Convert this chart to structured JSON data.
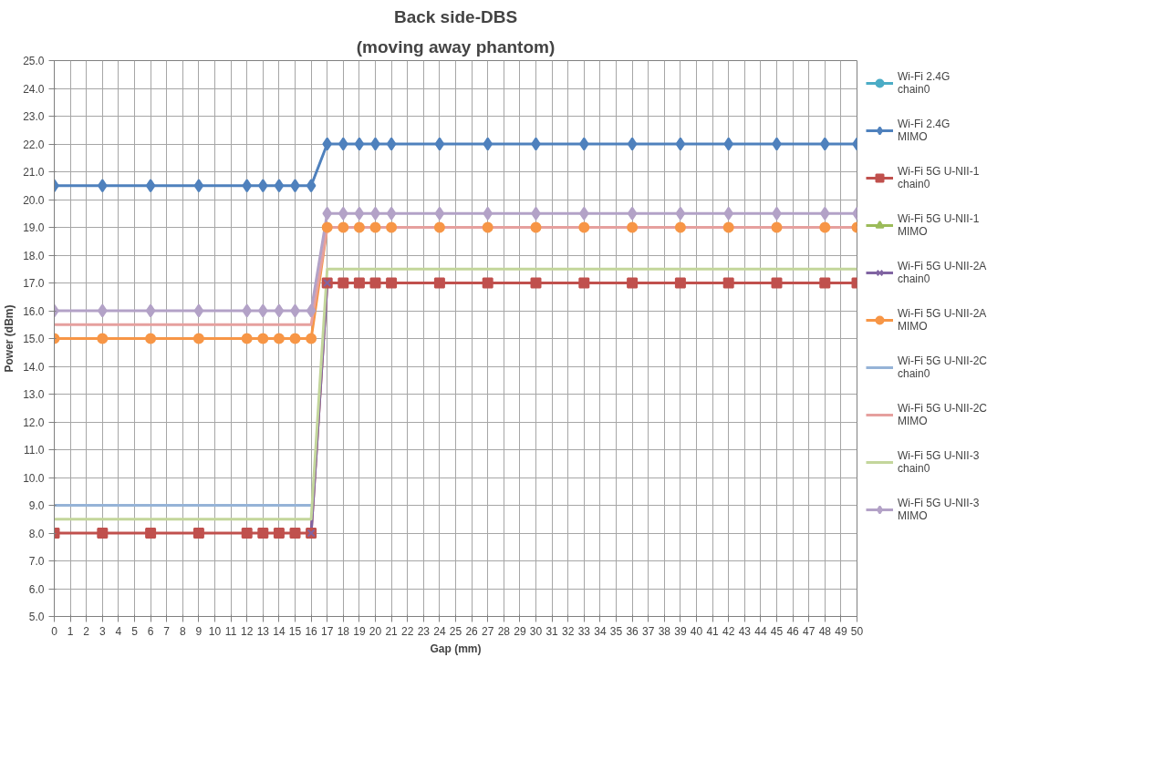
{
  "chart_data": {
    "type": "line",
    "title": "Back side-DBS",
    "subtitle": "(moving away phantom)",
    "xlabel": "Gap (mm)",
    "ylabel": "Power (dBm)",
    "x": [
      0,
      3,
      6,
      9,
      12,
      13,
      14,
      15,
      16,
      17,
      18,
      19,
      20,
      21,
      24,
      27,
      30,
      33,
      36,
      39,
      42,
      45,
      48,
      50
    ],
    "xlim": [
      0,
      50
    ],
    "xticks": [
      0,
      1,
      2,
      3,
      4,
      5,
      6,
      7,
      8,
      9,
      10,
      11,
      12,
      13,
      14,
      15,
      16,
      17,
      18,
      19,
      20,
      21,
      22,
      23,
      24,
      25,
      26,
      27,
      28,
      29,
      30,
      31,
      32,
      33,
      34,
      35,
      36,
      37,
      38,
      39,
      40,
      41,
      42,
      43,
      44,
      45,
      46,
      47,
      48,
      49,
      50
    ],
    "ylim": [
      5,
      25
    ],
    "yticks": [
      {
        "value": 5,
        "label": "5.0"
      },
      {
        "value": 6,
        "label": "6.0"
      },
      {
        "value": 7,
        "label": "7.0"
      },
      {
        "value": 8,
        "label": "8.0"
      },
      {
        "value": 9,
        "label": "9.0"
      },
      {
        "value": 10,
        "label": "10.0"
      },
      {
        "value": 11,
        "label": "11.0"
      },
      {
        "value": 12,
        "label": "12.0"
      },
      {
        "value": 13,
        "label": "13.0"
      },
      {
        "value": 14,
        "label": "14.0"
      },
      {
        "value": 15,
        "label": "15.0"
      },
      {
        "value": 16,
        "label": "16.0"
      },
      {
        "value": 17,
        "label": "17.0"
      },
      {
        "value": 18,
        "label": "18.0"
      },
      {
        "value": 19,
        "label": "19.0"
      },
      {
        "value": 20,
        "label": "20.0"
      },
      {
        "value": 21,
        "label": "21.0"
      },
      {
        "value": 22,
        "label": "22.0"
      },
      {
        "value": 23,
        "label": "23.0"
      },
      {
        "value": 24,
        "label": "24.0"
      },
      {
        "value": 25,
        "label": "25.0"
      }
    ],
    "grid": true,
    "legend": "right",
    "series": [
      {
        "name": "Wi-Fi 2.4G chain0",
        "color": "#4bacc6",
        "marker": "circle",
        "values": [
          null,
          null,
          null,
          null,
          null,
          null,
          null,
          null,
          null,
          null,
          null,
          null,
          null,
          null,
          null,
          null,
          null,
          null,
          null,
          null,
          null,
          null,
          null,
          null
        ]
      },
      {
        "name": "Wi-Fi 2.4G MIMO",
        "color": "#4f81bd",
        "marker": "diamond",
        "values": [
          20.5,
          20.5,
          20.5,
          20.5,
          20.5,
          20.5,
          20.5,
          20.5,
          20.5,
          22,
          22,
          22,
          22,
          22,
          22,
          22,
          22,
          22,
          22,
          22,
          22,
          22,
          22,
          22
        ]
      },
      {
        "name": "Wi-Fi 5G U-NII-1 chain0",
        "color": "#c0504d",
        "marker": "square",
        "values": [
          8,
          8,
          8,
          8,
          8,
          8,
          8,
          8,
          8,
          17,
          17,
          17,
          17,
          17,
          17,
          17,
          17,
          17,
          17,
          17,
          17,
          17,
          17,
          17
        ]
      },
      {
        "name": "Wi-Fi 5G U-NII-1 MIMO",
        "color": "#9bbb59",
        "marker": "triangle",
        "values": [
          null,
          null,
          null,
          null,
          null,
          null,
          null,
          null,
          null,
          null,
          null,
          null,
          null,
          null,
          null,
          null,
          null,
          null,
          null,
          null,
          null,
          null,
          null,
          null
        ]
      },
      {
        "name": "Wi-Fi 5G U-NII-2A chain0",
        "color": "#8064a2",
        "marker": "cross",
        "values": [
          null,
          null,
          null,
          null,
          null,
          null,
          null,
          null,
          8,
          17,
          null,
          null,
          null,
          null,
          null,
          null,
          null,
          null,
          null,
          null,
          null,
          null,
          null,
          null
        ]
      },
      {
        "name": "Wi-Fi 5G U-NII-2A MIMO",
        "color": "#f79646",
        "marker": "circle",
        "values": [
          15,
          15,
          15,
          15,
          15,
          15,
          15,
          15,
          15,
          19,
          19,
          19,
          19,
          19,
          19,
          19,
          19,
          19,
          19,
          19,
          19,
          19,
          19,
          19
        ]
      },
      {
        "name": "Wi-Fi 5G U-NII-2C chain0",
        "color": "#95b3d7",
        "marker": "none",
        "values": [
          9,
          9,
          9,
          9,
          9,
          9,
          9,
          9,
          9,
          null,
          null,
          null,
          null,
          null,
          null,
          null,
          null,
          null,
          null,
          null,
          null,
          null,
          null,
          null
        ]
      },
      {
        "name": "Wi-Fi 5G U-NII-2C MIMO",
        "color": "#e6a09e",
        "marker": "none",
        "values": [
          15.5,
          15.5,
          15.5,
          15.5,
          15.5,
          15.5,
          15.5,
          15.5,
          15.5,
          19,
          19,
          19,
          19,
          19,
          19,
          19,
          19,
          19,
          19,
          19,
          19,
          19,
          19,
          19
        ]
      },
      {
        "name": "Wi-Fi 5G U-NII-3 chain0",
        "color": "#c3d69b",
        "marker": "none",
        "values": [
          8.5,
          8.5,
          8.5,
          8.5,
          8.5,
          8.5,
          8.5,
          8.5,
          8.5,
          17.5,
          17.5,
          17.5,
          17.5,
          17.5,
          17.5,
          17.5,
          17.5,
          17.5,
          17.5,
          17.5,
          17.5,
          17.5,
          17.5,
          17.5
        ]
      },
      {
        "name": "Wi-Fi 5G U-NII-3 MIMO",
        "color": "#b3a2c7",
        "marker": "diamond",
        "values": [
          16,
          16,
          16,
          16,
          16,
          16,
          16,
          16,
          16,
          19.5,
          19.5,
          19.5,
          19.5,
          19.5,
          19.5,
          19.5,
          19.5,
          19.5,
          19.5,
          19.5,
          19.5,
          19.5,
          19.5,
          19.5
        ]
      }
    ]
  }
}
